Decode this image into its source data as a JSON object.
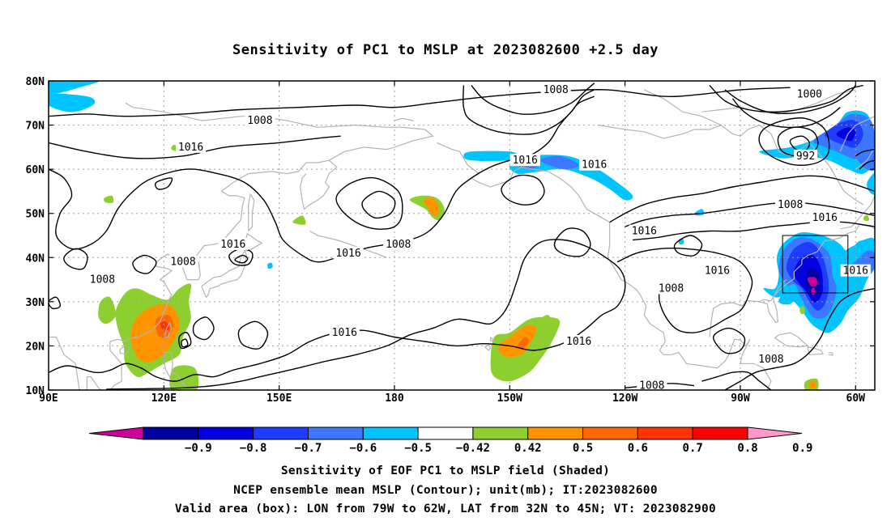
{
  "title": "Sensitivity of PC1 to MSLP at 2023082600 +2.5 day",
  "map": {
    "lat_labels": [
      "80N",
      "70N",
      "60N",
      "50N",
      "40N",
      "30N",
      "20N",
      "10N"
    ],
    "lon_labels": [
      "90E",
      "120E",
      "150E",
      "180",
      "150W",
      "120W",
      "90W",
      "60W"
    ],
    "lat_range": [
      10,
      80
    ],
    "lon_range_east": [
      90,
      305
    ],
    "grid": "dotted"
  },
  "contours": [
    {
      "label": "1008",
      "lon": 222,
      "lat": 78
    },
    {
      "label": "1008",
      "lon": 145,
      "lat": 71
    },
    {
      "label": "1016",
      "lon": 127,
      "lat": 65
    },
    {
      "label": "1016",
      "lon": 214,
      "lat": 62
    },
    {
      "label": "1016",
      "lon": 232,
      "lat": 61
    },
    {
      "label": "1000",
      "lon": 288,
      "lat": 77
    },
    {
      "label": "992",
      "lon": 287,
      "lat": 63
    },
    {
      "label": "1008",
      "lon": 283,
      "lat": 52
    },
    {
      "label": "1016",
      "lon": 292,
      "lat": 49
    },
    {
      "label": "1016",
      "lon": 245,
      "lat": 46
    },
    {
      "label": "1008",
      "lon": 181,
      "lat": 43
    },
    {
      "label": "1016",
      "lon": 168,
      "lat": 41
    },
    {
      "label": "1016",
      "lon": 138,
      "lat": 43
    },
    {
      "label": "1008",
      "lon": 125,
      "lat": 39
    },
    {
      "label": "1008",
      "lon": 104,
      "lat": 35
    },
    {
      "label": "1016",
      "lon": 264,
      "lat": 37
    },
    {
      "label": "1016",
      "lon": 300,
      "lat": 37
    },
    {
      "label": "1008",
      "lon": 252,
      "lat": 33
    },
    {
      "label": "1016",
      "lon": 167,
      "lat": 23
    },
    {
      "label": "1016",
      "lon": 228,
      "lat": 21
    },
    {
      "label": "1008",
      "lon": 278,
      "lat": 17
    },
    {
      "label": "1008",
      "lon": 247,
      "lat": 11
    }
  ],
  "valid_box": {
    "lon": [
      281,
      298
    ],
    "lat": [
      32,
      45
    ]
  },
  "colorbar": {
    "ticks": [
      "−0.9",
      "−0.8",
      "−0.7",
      "−0.6",
      "−0.5",
      "−0.42",
      "0.42",
      "0.5",
      "0.6",
      "0.7",
      "0.8",
      "0.9"
    ],
    "colors": [
      "#cc0099",
      "#0000a0",
      "#0000e0",
      "#1c3cff",
      "#3c78ff",
      "#00c4ff",
      "#ffffff",
      "#8ccf2e",
      "#ff9400",
      "#ff6800",
      "#ff3200",
      "#ff0000",
      "#ff99cc"
    ]
  },
  "captions": {
    "line1": "Sensitivity of EOF PC1 to MSLP field (Shaded)",
    "line2": "NCEP ensemble mean MSLP (Contour); unit(mb); IT:2023082600",
    "line3": "Valid area (box): LON from 79W to 62W, LAT from 32N to 45N; VT: 2023082900"
  }
}
